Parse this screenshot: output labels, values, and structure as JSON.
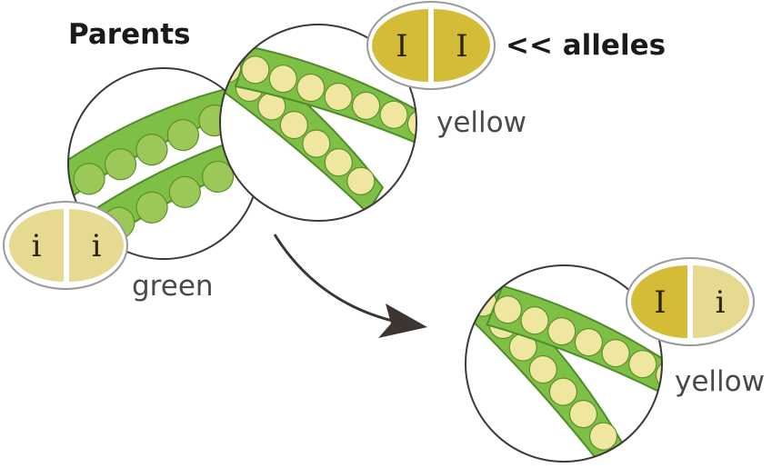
{
  "title": "Parents",
  "alleles_label": "<< alleles",
  "parents": [
    {
      "name": "green",
      "alleles": [
        "i",
        "i"
      ],
      "allele_colors": [
        "#e6da90",
        "#e6da90"
      ]
    },
    {
      "name": "yellow",
      "alleles": [
        "I",
        "I"
      ],
      "allele_colors": [
        "#d4bc36",
        "#d4bc36"
      ]
    }
  ],
  "offspring": {
    "name": "yellow",
    "alleles": [
      "I",
      "i"
    ],
    "allele_colors": [
      "#d4bc36",
      "#e6da90"
    ]
  },
  "colors": {
    "pod_green": "#7dc045",
    "pod_dark": "#4f8c2b",
    "green_pea": "#9cc85a",
    "yellow_pea": "#efe6a0",
    "arrow": "#3d3530",
    "outline": "#3a3a3a"
  }
}
